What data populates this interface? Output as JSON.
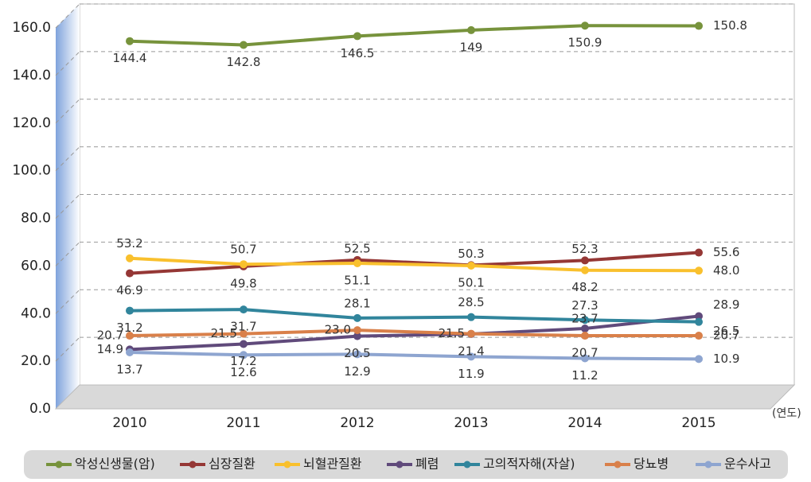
{
  "chart_data": {
    "type": "line",
    "categories": [
      "2010",
      "2011",
      "2012",
      "2013",
      "2014",
      "2015"
    ],
    "x_label": "(연도)",
    "ylim": [
      0,
      160
    ],
    "yticks": [
      {
        "value": 0,
        "label": "0.0"
      },
      {
        "value": 20,
        "label": "20.0"
      },
      {
        "value": 40,
        "label": "40.0"
      },
      {
        "value": 60,
        "label": "60.0"
      },
      {
        "value": 80,
        "label": "80.0"
      },
      {
        "value": 100,
        "label": "100.0"
      },
      {
        "value": 120,
        "label": "120.0"
      },
      {
        "value": 140,
        "label": "140.0"
      },
      {
        "value": 160,
        "label": "160.0"
      }
    ],
    "grid": true,
    "legend": "bottom",
    "series": [
      {
        "name": "악성신생물(암)",
        "color": "#77933c",
        "values": [
          144.4,
          142.8,
          146.5,
          149,
          150.9,
          150.8
        ],
        "value_labels": [
          "144.4",
          "142.8",
          "146.5",
          "149",
          "150.9",
          "150.8"
        ]
      },
      {
        "name": "심장질환",
        "color": "#953735",
        "values": [
          46.9,
          49.8,
          52.5,
          50.3,
          52.3,
          55.6
        ],
        "value_labels": [
          "46.9",
          "49.8",
          "52.5",
          "50.3",
          "52.3",
          "55.6"
        ]
      },
      {
        "name": "뇌혈관질환",
        "color": "#f9c02d",
        "values": [
          53.2,
          50.7,
          51.1,
          50.1,
          48.2,
          48.0
        ],
        "value_labels": [
          "53.2",
          "50.7",
          "51.1",
          "50.1",
          "48.2",
          "48.0"
        ]
      },
      {
        "name": "폐렴",
        "color": "#604a7b",
        "values": [
          14.9,
          17.2,
          20.5,
          21.4,
          23.7,
          28.9
        ],
        "value_labels": [
          "14.9",
          "17.2",
          "20.5",
          "21.4",
          "23.7",
          "28.9"
        ]
      },
      {
        "name": "고의적자해(자살)",
        "color": "#31859c",
        "values": [
          31.2,
          31.7,
          28.1,
          28.5,
          27.3,
          26.5
        ],
        "value_labels": [
          "31.2",
          "31.7",
          "28.1",
          "28.5",
          "27.3",
          "26.5"
        ]
      },
      {
        "name": "당뇨병",
        "color": "#d9804a",
        "values": [
          20.7,
          21.5,
          23.0,
          21.5,
          20.7,
          20.7
        ],
        "value_labels": [
          "20.7",
          "21.5",
          "23.0",
          "21.5",
          "20.7",
          "20.7"
        ]
      },
      {
        "name": "운수사고",
        "color": "#8ea5d0",
        "values": [
          13.7,
          12.6,
          12.9,
          11.9,
          11.2,
          10.9
        ],
        "value_labels": [
          "13.7",
          "12.6",
          "12.9",
          "11.9",
          "11.2",
          "10.9"
        ]
      }
    ]
  }
}
